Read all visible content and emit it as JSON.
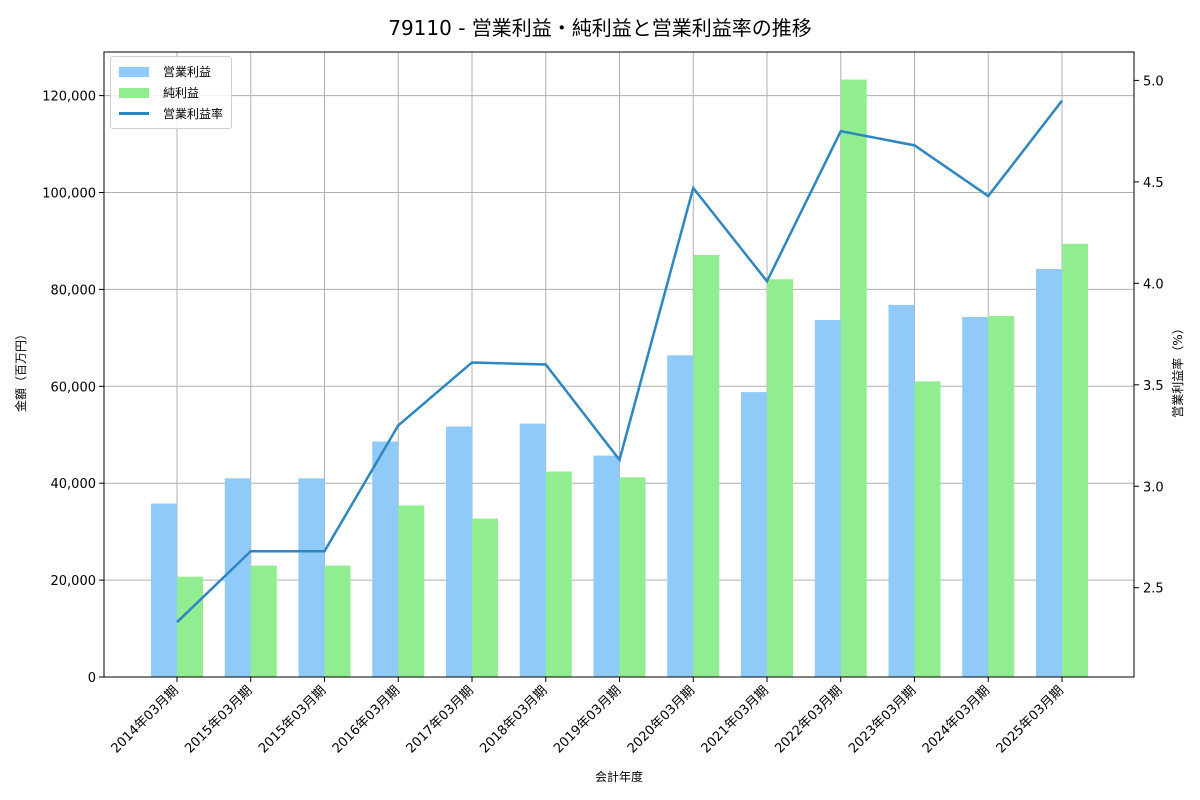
{
  "title": "79110 - 営業利益・純利益と営業利益率の推移",
  "legend": {
    "items": [
      {
        "label": "営業利益",
        "type": "bar",
        "color": "#90CAF9"
      },
      {
        "label": "純利益",
        "type": "bar",
        "color": "#90EE90"
      },
      {
        "label": "営業利益率",
        "type": "line",
        "color": "#2E86C1"
      }
    ]
  },
  "axes": {
    "xlabel": "会計年度",
    "ylabel_left": "金額（百万円）",
    "ylabel_right": "営業利益率（%）",
    "left_ticks": [
      "0",
      "20,000",
      "40,000",
      "60,000",
      "80,000",
      "100,000",
      "120,000"
    ],
    "right_ticks": [
      "2.5",
      "3.0",
      "3.5",
      "4.0",
      "4.5",
      "5.0"
    ]
  },
  "chart_data": {
    "type": "bar",
    "title": "79110 - 営業利益・純利益と営業利益率の推移",
    "xlabel": "会計年度",
    "ylabel": "金額（百万円）",
    "ylabel_right": "営業利益率（%）",
    "ylim": [
      0,
      129000
    ],
    "ylim_right": [
      2.06,
      5.14
    ],
    "grid": true,
    "legend_position": "upper left",
    "categories": [
      "2014年03月期",
      "2015年03月期",
      "2015年03月期",
      "2016年03月期",
      "2017年03月期",
      "2018年03月期",
      "2019年03月期",
      "2020年03月期",
      "2021年03月期",
      "2022年03月期",
      "2023年03月期",
      "2024年03月期",
      "2025年03月期"
    ],
    "series": [
      {
        "name": "営業利益",
        "type": "bar",
        "axis": "left",
        "color": "#90CAF9",
        "values": [
          35800,
          41000,
          41000,
          48600,
          51700,
          52300,
          45700,
          66400,
          58800,
          73700,
          76800,
          74300,
          84200
        ]
      },
      {
        "name": "純利益",
        "type": "bar",
        "axis": "left",
        "color": "#90EE90",
        "values": [
          20700,
          23000,
          23000,
          35400,
          32700,
          42400,
          41200,
          87100,
          82100,
          123300,
          61000,
          74500,
          89400
        ]
      },
      {
        "name": "営業利益率",
        "type": "line",
        "axis": "right",
        "color": "#2E86C1",
        "values": [
          2.33,
          2.68,
          2.68,
          3.3,
          3.61,
          3.6,
          3.13,
          4.47,
          4.01,
          4.75,
          4.68,
          4.43,
          4.9
        ]
      }
    ]
  }
}
